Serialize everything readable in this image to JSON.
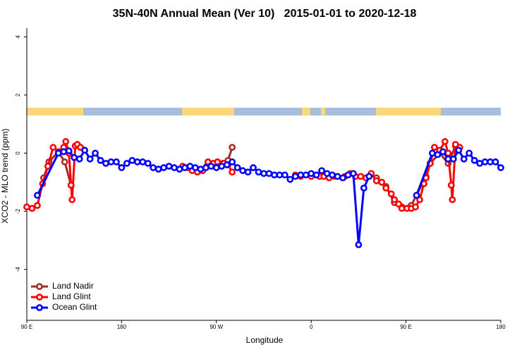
{
  "chart_data": {
    "type": "line",
    "title": "35N-40N Annual Mean (Ver 10)   2015-01-01 to 2020-12-18",
    "x_label": "Longitude",
    "y_label": "XCO2 - MLO trend (ppm)",
    "xlim": [
      90,
      540
    ],
    "ylim": [
      -5.75,
      4.3
    ],
    "xticks": [
      {
        "value": 90,
        "label": "90 E"
      },
      180,
      {
        "value": 270,
        "label": "90 W"
      },
      {
        "value": 360,
        "label": "0"
      },
      {
        "value": 450,
        "label": "90 E"
      },
      {
        "value": 540,
        "label": "180"
      }
    ],
    "yticks": [
      -4,
      -2,
      0,
      2,
      4
    ],
    "legend": "bottom-left",
    "series": [
      {
        "name": "Land Nadir",
        "color": "#a52a2a",
        "x": [
          106,
          111,
          120,
          126,
          132,
          200,
          261,
          276,
          281,
          285,
          300,
          422,
          431,
          439,
          446,
          455,
          469,
          473,
          482,
          490,
          497
        ],
        "values": [
          -0.85,
          -0.3,
          0.05,
          -0.3,
          -1.1,
          null,
          -0.45,
          -0.35,
          -0.25,
          0.2,
          null,
          -0.85,
          -1.15,
          -1.7,
          -1.85,
          -1.8,
          -0.8,
          -0.35,
          0,
          -0.35,
          0.25
        ]
      },
      {
        "name": "Land Glint",
        "color": "#ff0000",
        "x": [
          90,
          95,
          100,
          105,
          110,
          115,
          120,
          125,
          127,
          130,
          132,
          133,
          136,
          138,
          141,
          200,
          238,
          243,
          247,
          252,
          257,
          262,
          267,
          271,
          277,
          281,
          285,
          300,
          345,
          350,
          360,
          368,
          372,
          377,
          382,
          392,
          397,
          402,
          407,
          412,
          417,
          422,
          427,
          431,
          436,
          439,
          443,
          446,
          451,
          455,
          459,
          463,
          467,
          469,
          473,
          477,
          482,
          487,
          490,
          493,
          494,
          497,
          501
        ],
        "values": [
          -1.85,
          -1.9,
          -1.8,
          -1.05,
          -0.45,
          0.2,
          0.05,
          0.2,
          0.4,
          0,
          -1.1,
          -1.6,
          0.25,
          0.3,
          0.2,
          null,
          -0.45,
          -0.5,
          -0.6,
          -0.65,
          -0.6,
          -0.3,
          -0.35,
          -0.3,
          -0.35,
          -0.4,
          -0.65,
          null,
          -0.75,
          -0.8,
          -0.8,
          -0.8,
          -0.8,
          -0.85,
          -0.8,
          -0.8,
          -0.7,
          -0.8,
          -0.8,
          -0.85,
          -0.7,
          -0.95,
          -1.0,
          -1.2,
          -1.4,
          -1.6,
          -1.75,
          -1.9,
          -1.9,
          -1.9,
          -1.85,
          -1.6,
          -1.05,
          -0.85,
          -0.35,
          0.2,
          0.1,
          0.4,
          0,
          -1.1,
          -1.6,
          0.3,
          0.2
        ]
      },
      {
        "name": "Ocean Glint",
        "color": "#0000ff",
        "x": [
          100,
          120,
          125,
          130,
          135,
          140,
          145,
          150,
          155,
          160,
          165,
          170,
          175,
          180,
          185,
          190,
          195,
          200,
          205,
          210,
          215,
          220,
          225,
          230,
          235,
          240,
          245,
          250,
          255,
          260,
          265,
          270,
          275,
          280,
          285,
          290,
          295,
          300,
          305,
          310,
          315,
          320,
          325,
          330,
          335,
          340,
          345,
          350,
          355,
          360,
          365,
          370,
          375,
          380,
          385,
          390,
          395,
          400,
          405,
          410,
          415,
          440,
          460,
          475,
          480,
          485,
          490,
          495,
          500,
          505,
          510,
          515,
          520,
          525,
          530,
          535,
          540
        ],
        "values": [
          -1.45,
          0,
          0.05,
          0.08,
          -0.15,
          -0.2,
          0.1,
          -0.2,
          0,
          -0.25,
          -0.35,
          -0.3,
          -0.3,
          -0.5,
          -0.35,
          -0.25,
          -0.3,
          -0.3,
          -0.35,
          -0.5,
          -0.55,
          -0.5,
          -0.45,
          -0.5,
          -0.55,
          -0.5,
          -0.45,
          -0.5,
          -0.55,
          -0.5,
          -0.45,
          -0.5,
          -0.45,
          -0.4,
          -0.3,
          -0.5,
          -0.6,
          -0.65,
          -0.5,
          -0.65,
          -0.7,
          -0.7,
          -0.75,
          -0.75,
          -0.75,
          -0.9,
          -0.8,
          -0.75,
          -0.75,
          -0.7,
          -0.75,
          -0.6,
          -0.7,
          -0.75,
          -0.8,
          -0.85,
          -0.75,
          -0.7,
          -3.15,
          -1.2,
          -0.8,
          null,
          -1.45,
          0,
          -0.05,
          0.05,
          -0.2,
          -0.2,
          0.1,
          -0.2,
          0,
          -0.25,
          -0.35,
          -0.3,
          -0.3,
          -0.3,
          -0.5
        ]
      }
    ]
  }
}
